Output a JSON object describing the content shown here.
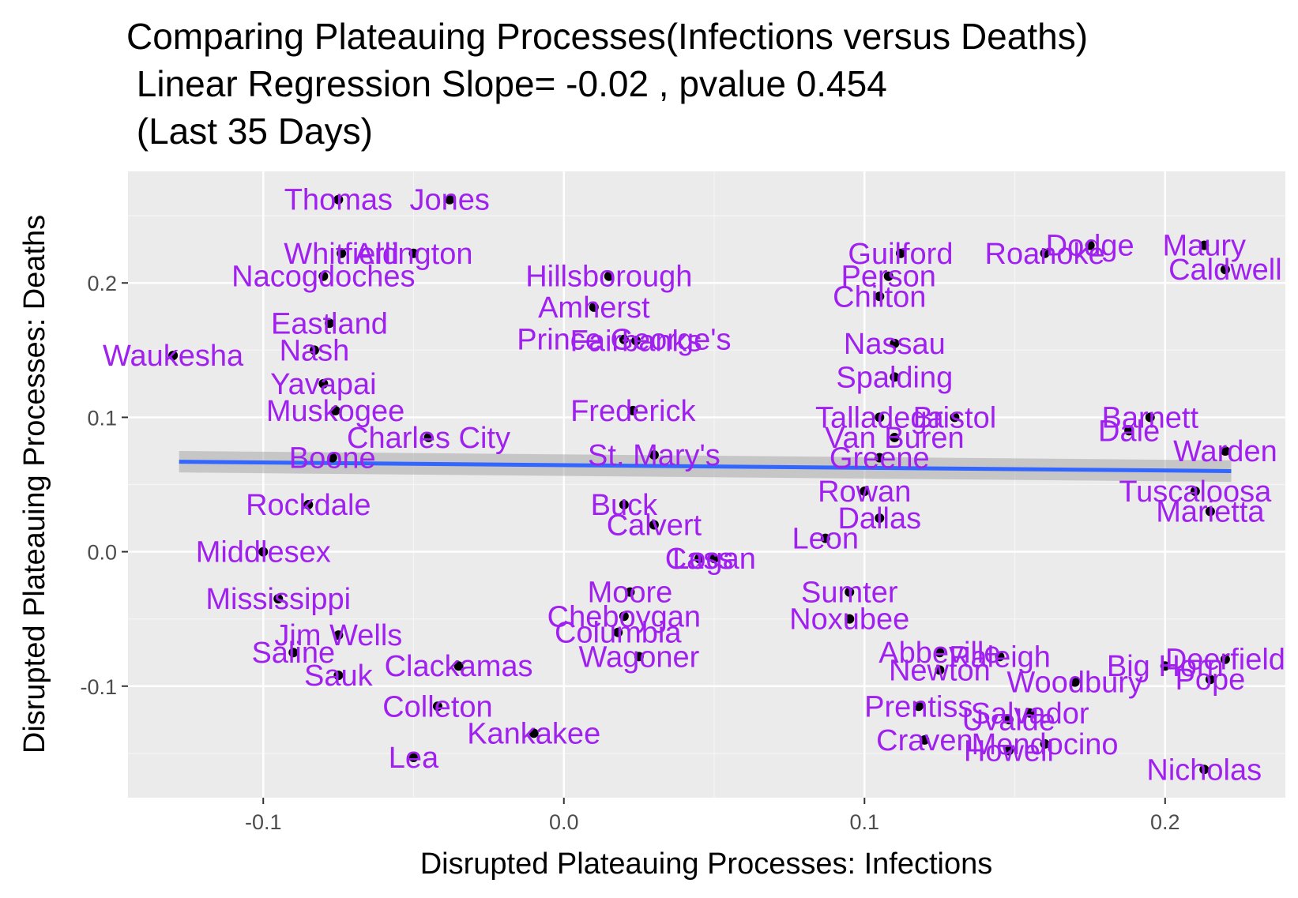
{
  "chart_data": {
    "type": "scatter",
    "title_lines": [
      "Comparing Plateauing Processes(Infections versus Deaths)",
      " Linear Regression Slope= -0.02 , pvalue 0.454",
      " (Last 35 Days)"
    ],
    "xlabel": "Disrupted Plateauing Processes: Infections",
    "ylabel": "Disrupted Plateauing Processes: Deaths",
    "xlim": [
      -0.145,
      0.24
    ],
    "ylim": [
      -0.183,
      0.283
    ],
    "x_ticks": [
      {
        "value": -0.1,
        "label": "-0.1"
      },
      {
        "value": 0.0,
        "label": "0.0"
      },
      {
        "value": 0.1,
        "label": "0.1"
      },
      {
        "value": 0.2,
        "label": "0.2"
      }
    ],
    "y_ticks": [
      {
        "value": -0.1,
        "label": "-0.1"
      },
      {
        "value": 0.0,
        "label": "0.0"
      },
      {
        "value": 0.1,
        "label": "0.1"
      },
      {
        "value": 0.2,
        "label": "0.2"
      }
    ],
    "grid": true,
    "regression": {
      "x_start": -0.128,
      "x_end": 0.222,
      "y_start": 0.067,
      "y_end": 0.06,
      "se": 0.008,
      "color": "#3366ff"
    },
    "colors": {
      "panel": "#ebebeb",
      "grid_major": "#ffffff",
      "grid_minor": "#f5f5f5",
      "point": "#000000",
      "label": "#a020f0",
      "band": "#999999"
    },
    "points": [
      {
        "x": -0.075,
        "y": 0.262,
        "label": "Thomas"
      },
      {
        "x": -0.038,
        "y": 0.262,
        "label": "Jones"
      },
      {
        "x": -0.074,
        "y": 0.222,
        "label": "Whitfield"
      },
      {
        "x": -0.05,
        "y": 0.222,
        "label": "Arlington"
      },
      {
        "x": -0.08,
        "y": 0.205,
        "label": "Nacogdoches"
      },
      {
        "x": 0.015,
        "y": 0.205,
        "label": "Hillsborough"
      },
      {
        "x": 0.01,
        "y": 0.182,
        "label": "Amherst"
      },
      {
        "x": -0.078,
        "y": 0.17,
        "label": "Eastland"
      },
      {
        "x": 0.02,
        "y": 0.158,
        "label": "Prince George's"
      },
      {
        "x": 0.024,
        "y": 0.157,
        "label": "Fairbanks"
      },
      {
        "x": -0.13,
        "y": 0.146,
        "label": "Waukesha"
      },
      {
        "x": -0.083,
        "y": 0.15,
        "label": "Nash"
      },
      {
        "x": -0.08,
        "y": 0.125,
        "label": "Yavapai"
      },
      {
        "x": -0.076,
        "y": 0.105,
        "label": "Muskogee"
      },
      {
        "x": 0.023,
        "y": 0.105,
        "label": "Frederick"
      },
      {
        "x": -0.045,
        "y": 0.085,
        "label": "Charles City"
      },
      {
        "x": -0.077,
        "y": 0.07,
        "label": "Boone"
      },
      {
        "x": 0.03,
        "y": 0.072,
        "label": "St. Mary's"
      },
      {
        "x": -0.085,
        "y": 0.035,
        "label": "Rockdale"
      },
      {
        "x": 0.02,
        "y": 0.035,
        "label": "Buck"
      },
      {
        "x": 0.03,
        "y": 0.02,
        "label": "Calvert"
      },
      {
        "x": -0.1,
        "y": 0.0,
        "label": "Middlesex"
      },
      {
        "x": 0.045,
        "y": -0.005,
        "label": "Cass"
      },
      {
        "x": 0.05,
        "y": -0.005,
        "label": "Logan"
      },
      {
        "x": 0.022,
        "y": -0.03,
        "label": "Moore"
      },
      {
        "x": -0.095,
        "y": -0.035,
        "label": "Mississippi"
      },
      {
        "x": 0.02,
        "y": -0.048,
        "label": "Cheboygan"
      },
      {
        "x": 0.018,
        "y": -0.06,
        "label": "Columbia"
      },
      {
        "x": -0.075,
        "y": -0.062,
        "label": "Jim Wells"
      },
      {
        "x": -0.09,
        "y": -0.075,
        "label": "Saline"
      },
      {
        "x": 0.025,
        "y": -0.078,
        "label": "Wagoner"
      },
      {
        "x": -0.075,
        "y": -0.092,
        "label": "Sauk"
      },
      {
        "x": -0.035,
        "y": -0.085,
        "label": "Clackamas"
      },
      {
        "x": -0.042,
        "y": -0.115,
        "label": "Colleton"
      },
      {
        "x": -0.01,
        "y": -0.135,
        "label": "Kankakee"
      },
      {
        "x": -0.05,
        "y": -0.153,
        "label": "Lea"
      },
      {
        "x": 0.112,
        "y": 0.222,
        "label": "Guilford"
      },
      {
        "x": 0.16,
        "y": 0.222,
        "label": "Roanoke"
      },
      {
        "x": 0.175,
        "y": 0.228,
        "label": "Dodge"
      },
      {
        "x": 0.213,
        "y": 0.228,
        "label": "Maury"
      },
      {
        "x": 0.22,
        "y": 0.21,
        "label": "Caldwell"
      },
      {
        "x": 0.108,
        "y": 0.205,
        "label": "Person"
      },
      {
        "x": 0.105,
        "y": 0.19,
        "label": "Chilton"
      },
      {
        "x": 0.11,
        "y": 0.155,
        "label": "Nassau"
      },
      {
        "x": 0.11,
        "y": 0.13,
        "label": "Spalding"
      },
      {
        "x": 0.105,
        "y": 0.1,
        "label": "Talladega"
      },
      {
        "x": 0.11,
        "y": 0.085,
        "label": "Van Buren"
      },
      {
        "x": 0.13,
        "y": 0.1,
        "label": "Bristol"
      },
      {
        "x": 0.195,
        "y": 0.1,
        "label": "Barnett"
      },
      {
        "x": 0.188,
        "y": 0.09,
        "label": "Dale"
      },
      {
        "x": 0.105,
        "y": 0.07,
        "label": "Greene"
      },
      {
        "x": 0.22,
        "y": 0.075,
        "label": "Warden"
      },
      {
        "x": 0.1,
        "y": 0.045,
        "label": "Rowan"
      },
      {
        "x": 0.21,
        "y": 0.045,
        "label": "Tuscaloosa"
      },
      {
        "x": 0.105,
        "y": 0.025,
        "label": "Dallas"
      },
      {
        "x": 0.215,
        "y": 0.03,
        "label": "Marietta"
      },
      {
        "x": 0.087,
        "y": 0.01,
        "label": "Leon"
      },
      {
        "x": 0.095,
        "y": -0.03,
        "label": "Sumter"
      },
      {
        "x": 0.095,
        "y": -0.05,
        "label": "Noxubee"
      },
      {
        "x": 0.125,
        "y": -0.075,
        "label": "Abbeville"
      },
      {
        "x": 0.145,
        "y": -0.078,
        "label": "Raleigh"
      },
      {
        "x": 0.125,
        "y": -0.088,
        "label": "Newton"
      },
      {
        "x": 0.17,
        "y": -0.097,
        "label": "Woodbury"
      },
      {
        "x": 0.215,
        "y": -0.095,
        "label": "Pope"
      },
      {
        "x": 0.2,
        "y": -0.085,
        "label": "Big Horn"
      },
      {
        "x": 0.22,
        "y": -0.08,
        "label": "Deerfield"
      },
      {
        "x": 0.118,
        "y": -0.115,
        "label": "Prentiss"
      },
      {
        "x": 0.155,
        "y": -0.12,
        "label": "Salvador"
      },
      {
        "x": 0.148,
        "y": -0.125,
        "label": "Uvalde"
      },
      {
        "x": 0.12,
        "y": -0.14,
        "label": "Craven"
      },
      {
        "x": 0.16,
        "y": -0.143,
        "label": "Mendocino"
      },
      {
        "x": 0.148,
        "y": -0.148,
        "label": "Howell"
      },
      {
        "x": 0.213,
        "y": -0.162,
        "label": "Nicholas"
      }
    ]
  }
}
